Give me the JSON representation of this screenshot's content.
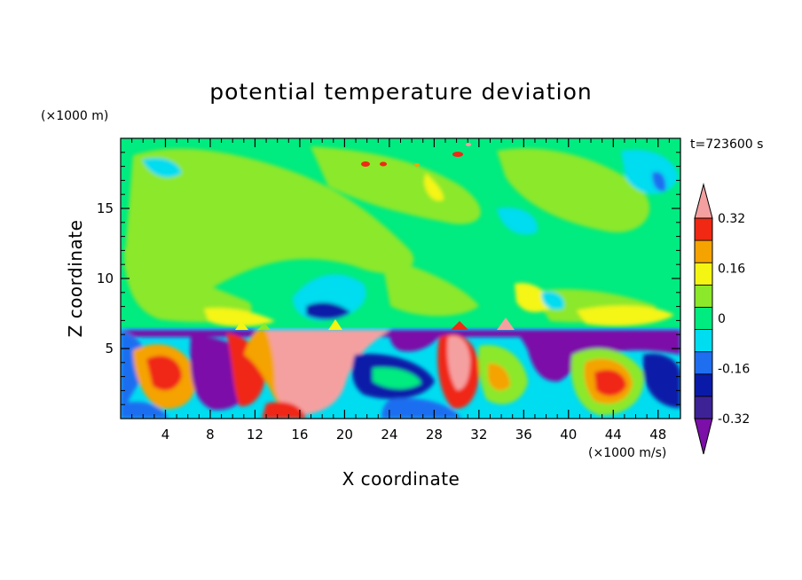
{
  "chart_data": {
    "type": "heatmap",
    "title": "potential temperature deviation",
    "xlabel": "X coordinate",
    "ylabel": "Z coordinate",
    "x_unit": "(×1000 m/s)",
    "y_unit": "(×1000 m)",
    "time_label": "t=723600 s",
    "xlim": [
      0,
      50
    ],
    "ylim": [
      0,
      20
    ],
    "x_ticks": [
      4,
      8,
      12,
      16,
      20,
      24,
      28,
      32,
      36,
      40,
      44,
      48
    ],
    "y_ticks": [
      5,
      10,
      15
    ],
    "colorbar": {
      "levels": [
        -0.4,
        -0.32,
        -0.24,
        -0.16,
        -0.08,
        0,
        0.08,
        0.16,
        0.24,
        0.32,
        0.4
      ],
      "tick_labels": [
        "0.32",
        "0.16",
        "0",
        "-0.16",
        "-0.32"
      ],
      "tick_values": [
        0.32,
        0.16,
        0,
        -0.16,
        -0.32
      ],
      "colors_low_to_high": [
        "#7b0fa8",
        "#3d2296",
        "#0a1aa8",
        "#1f6ef0",
        "#00dcf0",
        "#00eb80",
        "#8ce82a",
        "#f5f514",
        "#f5a300",
        "#f02814",
        "#f5a0a0"
      ],
      "extend": "both"
    },
    "regions": [
      {
        "x": [
          0,
          50
        ],
        "z": [
          6.5,
          20
        ],
        "value": 0.04
      },
      {
        "x": [
          0,
          50
        ],
        "z": [
          0,
          6.5
        ],
        "value": -0.08
      },
      {
        "x": [
          14,
          22
        ],
        "z": [
          0,
          6.5
        ],
        "value": 0.42
      },
      {
        "x": [
          29,
          31
        ],
        "z": [
          2,
          6.5
        ],
        "value": 0.42
      },
      {
        "x": [
          42,
          45
        ],
        "z": [
          1.5,
          3.5
        ],
        "value": 0.32
      },
      {
        "x": [
          6,
          10
        ],
        "z": [
          0.5,
          5
        ],
        "value": -0.4
      },
      {
        "x": [
          37,
          41
        ],
        "z": [
          3,
          6.5
        ],
        "value": -0.4
      },
      {
        "x": [
          16,
          20
        ],
        "z": [
          6.5,
          9
        ],
        "value": -0.16
      },
      {
        "x": [
          36,
          40
        ],
        "z": [
          7,
          10
        ],
        "value": 0.16
      }
    ]
  }
}
